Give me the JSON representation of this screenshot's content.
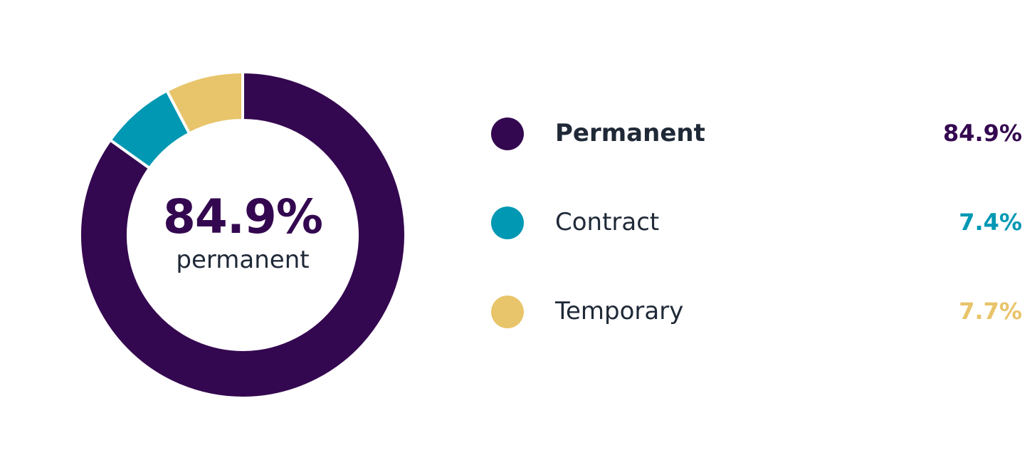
{
  "chart_data": {
    "type": "pie",
    "variant": "donut",
    "categories": [
      "Permanent",
      "Contract",
      "Temporary"
    ],
    "values": [
      84.9,
      7.4,
      7.7
    ],
    "value_labels": [
      "84.9%",
      "7.4%",
      "7.7%"
    ],
    "colors": [
      "#340850",
      "#0098b3",
      "#e8c46a"
    ],
    "start_angle_deg": 0,
    "direction": "clockwise",
    "center_value": "84.9%",
    "center_label": "permanent",
    "legend_placement": "right"
  },
  "legend": {
    "items": [
      {
        "label": "Permanent",
        "value": "84.9%",
        "color": "#340850",
        "emphasis": true
      },
      {
        "label": "Contract",
        "value": "7.4%",
        "color": "#0098b3",
        "emphasis": false
      },
      {
        "label": "Temporary",
        "value": "7.7%",
        "color": "#e8c46a",
        "emphasis": false
      }
    ]
  },
  "colors": {
    "text": "#1f2937",
    "background": "#ffffff"
  }
}
